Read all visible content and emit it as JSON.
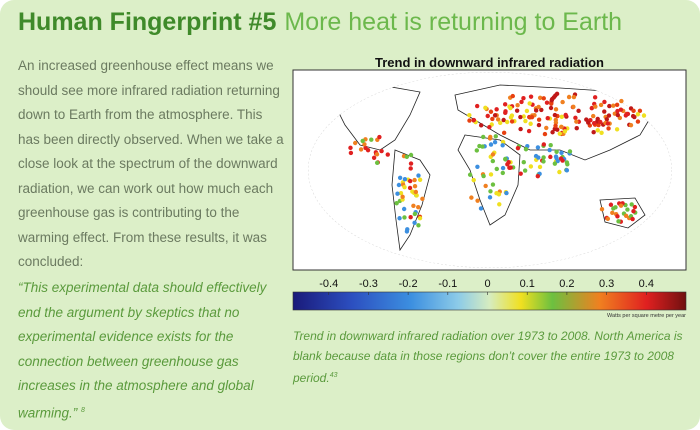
{
  "header": {
    "title": "Human Fingerprint #5",
    "subtitle": "More heat is returning to Earth"
  },
  "intro": "An increased greenhouse effect means we should see more infrared radiation returning down to Earth from the atmosphere. This has been directly observed. When we take a close look at the spectrum of the downward radiation, we can work out how much each greenhouse gas is contributing to the warming effect. From these results, it was concluded:",
  "quote": {
    "text": "“This experimental data should effectively end the argument by skeptics that no experimental evidence exists for the connection between greenhouse gas increases in the atmosphere and global warming.”",
    "ref": "8"
  },
  "figure": {
    "title": "Trend in downward infrared radiation",
    "colorbar": {
      "lim": [
        -0.49,
        0.5
      ],
      "ticks": [
        -0.4,
        -0.3,
        -0.2,
        -0.1,
        0,
        0.1,
        0.2,
        0.3,
        0.4
      ],
      "unit": "Watts per square metre per year"
    },
    "caption": "Trend in downward infrared radiation over 1973 to 2008. North America is blank because data in those regions don’t cover the entire 1973 to 2008 period.",
    "caption_ref": "43"
  }
}
